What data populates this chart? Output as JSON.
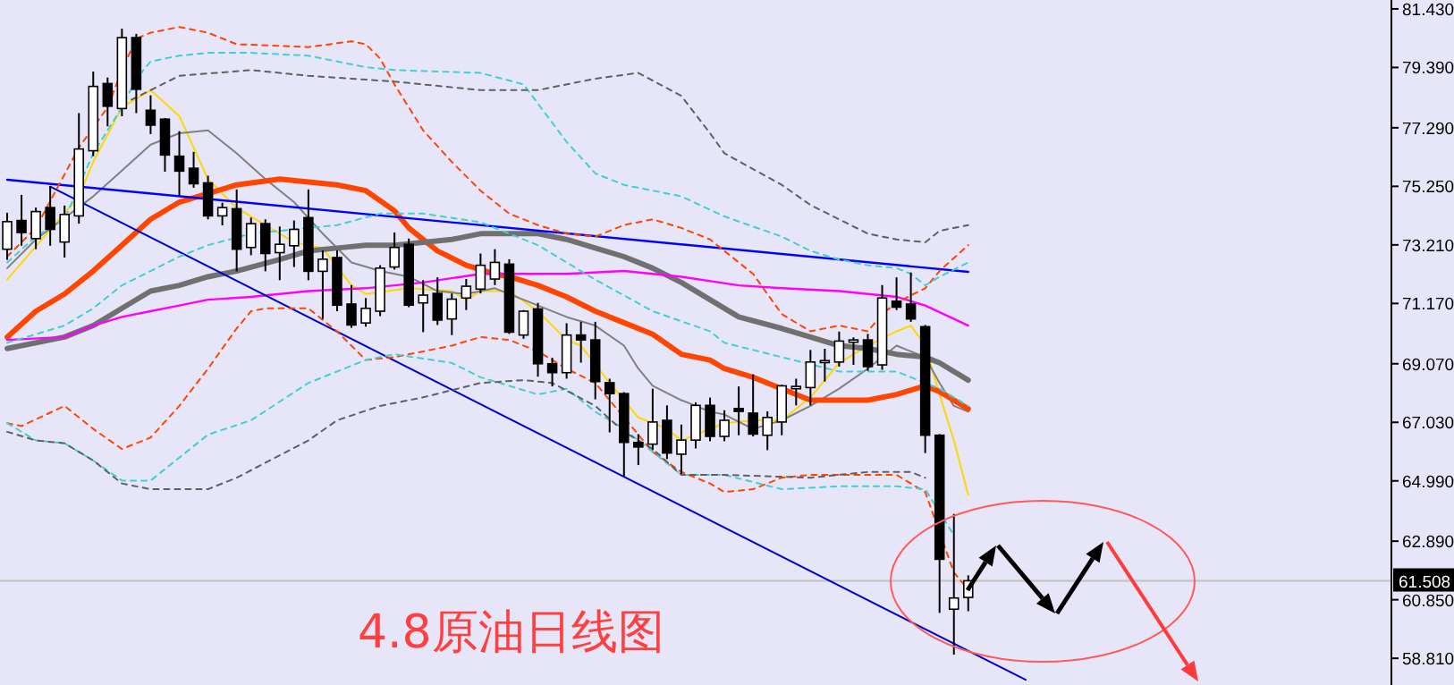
{
  "chart_data": {
    "type": "candlestick",
    "categories": [
      null,
      null,
      null,
      null,
      null,
      null,
      null,
      null,
      null,
      null,
      null,
      null,
      null,
      null,
      null,
      null,
      null,
      null,
      null,
      null,
      null,
      null,
      null,
      null,
      null,
      null,
      null,
      null,
      null,
      null,
      null,
      null,
      null,
      null,
      null,
      null,
      null,
      null,
      null,
      null,
      null,
      null,
      null,
      null,
      null,
      null,
      null,
      null,
      null,
      null,
      null,
      null,
      null,
      null,
      null,
      null,
      null,
      null,
      null,
      null,
      null,
      null,
      null,
      null,
      null,
      null,
      null,
      null,
      null,
      null,
      null,
      null,
      null,
      null,
      null,
      null,
      null,
      null,
      null,
      null,
      null,
      null,
      null,
      null,
      null,
      null,
      null,
      null,
      null,
      null,
      null,
      null,
      null,
      null,
      null,
      null,
      null
    ],
    "ohlc": [
      [
        73.06,
        74.33,
        72.69,
        74.02
      ],
      [
        74.06,
        74.95,
        73.18,
        73.64
      ],
      [
        73.43,
        74.51,
        73.06,
        74.37
      ],
      [
        74.51,
        75.26,
        73.18,
        73.75
      ],
      [
        73.31,
        74.58,
        72.77,
        74.27
      ],
      [
        74.22,
        77.8,
        73.95,
        76.55
      ],
      [
        76.49,
        79.25,
        76.3,
        78.73
      ],
      [
        78.83,
        79.04,
        77.34,
        78.04
      ],
      [
        77.96,
        80.74,
        77.69,
        80.43
      ],
      [
        80.43,
        80.56,
        77.8,
        78.63
      ],
      [
        77.9,
        78.42,
        77.07,
        77.38
      ],
      [
        77.59,
        77.63,
        75.76,
        76.34
      ],
      [
        76.3,
        77.17,
        74.93,
        75.78
      ],
      [
        75.88,
        76.45,
        75.2,
        75.34
      ],
      [
        75.37,
        75.62,
        74.1,
        74.22
      ],
      [
        74.22,
        74.68,
        73.89,
        74.51
      ],
      [
        74.47,
        75.14,
        72.29,
        73.06
      ],
      [
        73.12,
        74.16,
        72.85,
        73.95
      ],
      [
        73.95,
        74.1,
        72.29,
        72.91
      ],
      [
        72.94,
        73.85,
        71.98,
        73.23
      ],
      [
        73.18,
        74.06,
        72.44,
        73.75
      ],
      [
        74.16,
        75.14,
        71.98,
        72.29
      ],
      [
        72.29,
        73.02,
        70.63,
        72.71
      ],
      [
        72.77,
        73.02,
        70.9,
        71.11
      ],
      [
        71.15,
        71.81,
        70.32,
        70.42
      ],
      [
        70.49,
        71.36,
        70.36,
        71.0
      ],
      [
        70.9,
        72.5,
        70.73,
        72.4
      ],
      [
        72.44,
        73.64,
        72.35,
        73.12
      ],
      [
        73.23,
        73.43,
        71.04,
        71.11
      ],
      [
        71.19,
        71.98,
        70.17,
        71.46
      ],
      [
        71.52,
        72.08,
        70.42,
        70.59
      ],
      [
        70.63,
        71.52,
        70.07,
        71.32
      ],
      [
        71.36,
        72.02,
        70.94,
        71.77
      ],
      [
        71.67,
        72.91,
        71.52,
        72.5
      ],
      [
        72.02,
        73.06,
        71.81,
        72.6
      ],
      [
        72.54,
        72.71,
        70.11,
        70.17
      ],
      [
        70.07,
        70.94,
        69.94,
        70.9
      ],
      [
        70.98,
        71.19,
        68.62,
        69.07
      ],
      [
        69.07,
        69.28,
        68.28,
        68.76
      ],
      [
        68.76,
        70.48,
        68.55,
        70.07
      ],
      [
        70.07,
        70.53,
        69.11,
        69.9
      ],
      [
        69.9,
        70.53,
        67.83,
        68.45
      ],
      [
        68.41,
        68.55,
        66.68,
        68.03
      ],
      [
        68.03,
        68.08,
        65.13,
        66.33
      ],
      [
        66.33,
        66.62,
        65.54,
        66.17
      ],
      [
        66.27,
        68.2,
        66.06,
        67.04
      ],
      [
        67.1,
        67.62,
        65.75,
        65.96
      ],
      [
        65.92,
        66.95,
        65.23,
        66.41
      ],
      [
        66.41,
        67.72,
        66.12,
        67.62
      ],
      [
        67.62,
        67.89,
        66.37,
        66.54
      ],
      [
        66.54,
        67.45,
        66.37,
        67.1
      ],
      [
        67.51,
        68.28,
        66.58,
        67.41
      ],
      [
        67.35,
        68.7,
        66.54,
        66.62
      ],
      [
        66.58,
        67.41,
        66.06,
        67.2
      ],
      [
        67.04,
        68.34,
        66.58,
        68.3
      ],
      [
        68.2,
        68.55,
        67.62,
        68.28
      ],
      [
        68.24,
        69.55,
        67.62,
        69.13
      ],
      [
        69.11,
        69.59,
        68.45,
        69.18
      ],
      [
        69.13,
        70.19,
        68.97,
        69.86
      ],
      [
        69.82,
        69.99,
        69.03,
        69.9
      ],
      [
        69.9,
        70.11,
        68.82,
        68.97
      ],
      [
        69.03,
        71.81,
        68.86,
        71.36
      ],
      [
        71.25,
        72.08,
        70.94,
        71.04
      ],
      [
        71.15,
        72.25,
        70.53,
        70.63
      ],
      [
        70.36,
        70.42,
        65.96,
        66.58
      ],
      [
        66.58,
        66.62,
        60.39,
        62.26
      ],
      [
        60.52,
        63.84,
        58.94,
        60.91
      ],
      [
        60.93,
        61.7,
        60.45,
        61.51
      ],
      null,
      null,
      null,
      null,
      null,
      null,
      null,
      null,
      null,
      null,
      null,
      null,
      null,
      null,
      null,
      null,
      null,
      null,
      null,
      null,
      null,
      null,
      null,
      null,
      null,
      null,
      null,
      null,
      null
    ],
    "series": [
      {
        "type": "line",
        "color": "#ffd700",
        "line_style": "solid",
        "values": [
          72.0,
          null,
          null,
          null,
          null,
          74.9,
          76.1,
          null,
          78.0,
          null,
          78.6,
          null,
          77.7,
          null,
          75.5,
          null,
          74.5,
          null,
          null,
          null,
          73.3,
          null,
          73.1,
          null,
          71.8,
          71.5,
          null,
          null,
          71.7,
          null,
          null,
          71.6,
          71.3,
          71.6,
          null,
          71.6,
          null,
          70.9,
          null,
          69.9,
          69.7,
          null,
          68.4,
          null,
          67.2,
          null,
          66.8,
          66.4,
          66.6,
          null,
          67.0,
          null,
          67.1,
          null,
          67.1,
          null,
          67.9,
          null,
          69.1,
          null,
          69.7,
          null,
          70.2,
          70.4,
          69.7,
          68.0,
          66.4,
          64.5,
          null,
          null,
          null,
          null,
          null,
          null,
          null,
          null,
          null,
          null,
          null,
          null,
          null,
          null,
          null,
          null,
          null,
          null,
          null,
          null,
          null,
          null,
          null,
          null,
          null,
          null,
          null,
          null,
          null
        ]
      },
      {
        "type": "line",
        "color": "#808080",
        "line_style": "solid",
        "values": [
          72.4,
          null,
          73.4,
          null,
          null,
          null,
          74.9,
          null,
          75.8,
          null,
          76.7,
          null,
          77.1,
          null,
          77.2,
          null,
          76.4,
          null,
          75.5,
          null,
          74.7,
          null,
          73.6,
          null,
          72.6,
          null,
          72.3,
          null,
          72.1,
          null,
          71.6,
          null,
          71.5,
          null,
          71.7,
          null,
          null,
          71.1,
          null,
          70.7,
          null,
          70.4,
          null,
          69.7,
          68.9,
          68.3,
          null,
          67.8,
          null,
          67.4,
          67.3,
          null,
          66.8,
          null,
          67.1,
          null,
          67.6,
          null,
          68.2,
          null,
          68.9,
          null,
          69.7,
          null,
          69.3,
          68.4,
          67.6,
          67.4,
          null,
          null,
          null,
          null,
          null,
          null,
          null,
          null,
          null,
          null,
          null,
          null,
          null,
          null,
          null,
          null,
          null,
          null,
          null,
          null,
          null,
          null,
          null,
          null,
          null,
          null,
          null,
          null,
          null
        ]
      },
      {
        "type": "line",
        "color": "#ff4500",
        "line_style": "solid",
        "values": [
          70.0,
          null,
          70.9,
          null,
          71.5,
          null,
          72.3,
          null,
          73.2,
          null,
          74.1,
          null,
          74.7,
          null,
          75.0,
          null,
          75.3,
          null,
          null,
          75.5,
          null,
          75.4,
          null,
          75.3,
          null,
          75.1,
          null,
          74.4,
          73.8,
          null,
          73.0,
          null,
          72.5,
          null,
          72.2,
          72.1,
          null,
          71.8,
          null,
          71.4,
          null,
          70.9,
          null,
          70.5,
          null,
          70.1,
          null,
          69.4,
          null,
          69.2,
          68.9,
          null,
          68.6,
          null,
          68.2,
          null,
          67.8,
          null,
          67.8,
          null,
          67.8,
          null,
          68.0,
          null,
          68.3,
          68.1,
          null,
          67.5,
          null,
          null,
          null,
          null,
          null,
          null,
          null,
          null,
          null,
          null,
          null,
          null,
          null,
          null,
          null,
          null,
          null,
          null,
          null,
          null,
          null,
          null,
          null,
          null,
          null,
          null,
          null,
          null,
          null
        ]
      },
      {
        "type": "line",
        "color": "#707070",
        "line_style": "solid",
        "values": [
          69.6,
          null,
          null,
          null,
          70.0,
          null,
          70.4,
          null,
          71.0,
          null,
          71.6,
          null,
          71.8,
          null,
          72.1,
          null,
          72.3,
          null,
          null,
          72.7,
          null,
          73.0,
          null,
          73.1,
          null,
          73.2,
          null,
          73.2,
          null,
          73.3,
          null,
          73.4,
          null,
          73.6,
          null,
          73.6,
          null,
          73.6,
          null,
          73.4,
          null,
          73.1,
          null,
          72.8,
          null,
          72.4,
          null,
          71.9,
          null,
          71.3,
          null,
          70.7,
          null,
          null,
          70.3,
          null,
          70.0,
          null,
          69.7,
          null,
          69.6,
          null,
          69.4,
          null,
          69.3,
          69.1,
          null,
          68.5,
          null,
          null,
          null,
          null,
          null,
          null,
          null,
          null,
          null,
          null,
          null,
          null,
          null,
          null,
          null,
          null,
          null,
          null,
          null,
          null,
          null,
          null,
          null,
          null,
          null,
          null,
          null,
          null,
          null
        ]
      },
      {
        "type": "line",
        "color": "#ff00ff",
        "line_style": "solid",
        "values": [
          69.9,
          null,
          null,
          null,
          70.0,
          null,
          70.4,
          null,
          70.7,
          null,
          70.9,
          null,
          71.1,
          null,
          71.3,
          null,
          null,
          71.4,
          null,
          null,
          null,
          71.6,
          null,
          null,
          null,
          71.7,
          null,
          null,
          null,
          71.9,
          null,
          null,
          null,
          72.2,
          null,
          null,
          null,
          null,
          null,
          72.2,
          null,
          null,
          null,
          72.3,
          null,
          null,
          null,
          72.1,
          null,
          null,
          null,
          71.8,
          null,
          null,
          71.7,
          null,
          null,
          null,
          71.6,
          null,
          null,
          null,
          71.4,
          null,
          71.1,
          null,
          null,
          70.4,
          null,
          null,
          null,
          null,
          null,
          null,
          null,
          null,
          null,
          null,
          null,
          null,
          null,
          null,
          null,
          null,
          null,
          null,
          null,
          null,
          null,
          null,
          null,
          null,
          null,
          null,
          null,
          null,
          null
        ]
      },
      {
        "type": "line",
        "color": "#0000ff",
        "line_style": "solid",
        "values": [
          75.48,
          null,
          null,
          null,
          null,
          null,
          null,
          null,
          null,
          null,
          null,
          null,
          null,
          null,
          null,
          null,
          null,
          null,
          null,
          null,
          null,
          null,
          null,
          null,
          null,
          null,
          null,
          null,
          null,
          null,
          null,
          null,
          null,
          null,
          null,
          null,
          null,
          null,
          null,
          null,
          null,
          null,
          null,
          null,
          null,
          null,
          null,
          null,
          null,
          null,
          null,
          null,
          null,
          null,
          null,
          null,
          null,
          null,
          null,
          null,
          null,
          null,
          null,
          null,
          null,
          null,
          null,
          72.27,
          null,
          null,
          null,
          null,
          null,
          null,
          null,
          null,
          null,
          null,
          null,
          null,
          null,
          null,
          null,
          null,
          null,
          null,
          null,
          null,
          null,
          null,
          null,
          null,
          null,
          null,
          null,
          null,
          null
        ]
      },
      {
        "type": "line",
        "color": "#0000cd",
        "line_style": "solid",
        "values": [
          null,
          null,
          null,
          75.24,
          null,
          null,
          null,
          null,
          null,
          null,
          null,
          null,
          null,
          null,
          null,
          null,
          null,
          null,
          null,
          null,
          null,
          null,
          null,
          null,
          null,
          null,
          null,
          null,
          null,
          null,
          null,
          null,
          null,
          null,
          null,
          null,
          null,
          null,
          null,
          null,
          null,
          null,
          null,
          null,
          null,
          null,
          null,
          null,
          null,
          null,
          null,
          null,
          null,
          null,
          null,
          null,
          null,
          null,
          null,
          null,
          null,
          null,
          null,
          null,
          null,
          null,
          null,
          null,
          null,
          null,
          null,
          58.06,
          null,
          null,
          null,
          null,
          null,
          null,
          null,
          null,
          null,
          null,
          null,
          null,
          null,
          null,
          null,
          null,
          null,
          null,
          null,
          null,
          null,
          null,
          null,
          null,
          null
        ]
      },
      {
        "type": "line",
        "color": "#ff4500",
        "line_style": "dashed",
        "values": [
          72.8,
          null,
          73.8,
          null,
          null,
          76.6,
          null,
          78.0,
          79.3,
          80.4,
          80.6,
          null,
          80.8,
          null,
          80.6,
          null,
          80.2,
          null,
          null,
          null,
          null,
          80.1,
          null,
          null,
          80.3,
          80.2,
          79.7,
          78.8,
          null,
          77.2,
          null,
          76.1,
          null,
          75.1,
          null,
          74.3,
          null,
          73.9,
          null,
          73.6,
          null,
          73.5,
          null,
          73.9,
          null,
          74.1,
          null,
          73.8,
          null,
          73.4,
          null,
          null,
          72.2,
          null,
          70.8,
          null,
          70.2,
          null,
          70.4,
          null,
          70.2,
          70.8,
          71.2,
          null,
          71.7,
          72.3,
          null,
          73.2,
          null,
          null,
          null,
          null,
          null,
          null,
          null,
          null,
          null,
          null,
          null,
          null,
          null,
          null,
          null,
          null,
          null,
          null,
          null,
          null,
          null,
          null,
          null,
          null,
          null,
          null,
          null,
          null,
          null
        ]
      },
      {
        "type": "line",
        "color": "#ff4500",
        "line_style": "dashed",
        "values": [
          67.0,
          66.9,
          null,
          null,
          67.6,
          null,
          66.8,
          null,
          66.1,
          null,
          66.5,
          null,
          67.6,
          null,
          68.9,
          null,
          70.3,
          70.9,
          71.0,
          null,
          null,
          71.0,
          null,
          70.2,
          null,
          69.2,
          null,
          69.3,
          null,
          69.5,
          null,
          69.7,
          null,
          70.0,
          null,
          69.9,
          null,
          69.5,
          null,
          68.9,
          null,
          68.4,
          null,
          67.2,
          null,
          66.0,
          null,
          65.3,
          null,
          64.9,
          64.6,
          null,
          64.7,
          null,
          65.1,
          null,
          65.2,
          null,
          null,
          null,
          65.2,
          null,
          65.2,
          null,
          64.6,
          null,
          61.8,
          61.2,
          null,
          null,
          null,
          null,
          null,
          null,
          null,
          null,
          null,
          null,
          null,
          null,
          null,
          null,
          null,
          null,
          null,
          null,
          null,
          null,
          null,
          null,
          null,
          null,
          null,
          null,
          null,
          null,
          null
        ]
      },
      {
        "type": "line",
        "color": "#40d0d0",
        "line_style": "dashed",
        "values": [
          72.6,
          null,
          73.5,
          null,
          74.1,
          null,
          76.4,
          null,
          78.0,
          79.0,
          79.6,
          null,
          79.8,
          null,
          79.9,
          null,
          null,
          79.9,
          null,
          null,
          null,
          79.8,
          null,
          null,
          null,
          79.4,
          null,
          79.3,
          null,
          null,
          null,
          null,
          null,
          79.2,
          null,
          null,
          78.8,
          null,
          null,
          76.8,
          null,
          75.7,
          null,
          75.3,
          null,
          null,
          null,
          74.9,
          null,
          null,
          74.2,
          null,
          null,
          null,
          73.5,
          null,
          73.0,
          null,
          72.7,
          null,
          72.5,
          null,
          72.4,
          72.2,
          71.8,
          72.1,
          null,
          72.6,
          null,
          null,
          null,
          null,
          null,
          null,
          null,
          null,
          null,
          null,
          null,
          null,
          null,
          null,
          null,
          null,
          null,
          null,
          null,
          null,
          null,
          null,
          null,
          null,
          null,
          null,
          null,
          null,
          null
        ]
      },
      {
        "type": "line",
        "color": "#40d0d0",
        "line_style": "dashed",
        "values": [
          69.8,
          null,
          null,
          null,
          70.4,
          null,
          71.0,
          null,
          71.8,
          null,
          72.3,
          null,
          72.8,
          null,
          73.2,
          null,
          null,
          73.6,
          null,
          null,
          null,
          null,
          null,
          73.9,
          null,
          null,
          74.3,
          null,
          null,
          74.3,
          null,
          null,
          null,
          74.0,
          null,
          null,
          null,
          73.2,
          null,
          null,
          null,
          72.0,
          null,
          null,
          null,
          70.9,
          null,
          null,
          null,
          70.2,
          69.8,
          null,
          null,
          null,
          69.3,
          null,
          null,
          null,
          68.8,
          null,
          null,
          null,
          68.8,
          null,
          68.4,
          68.2,
          null,
          67.6,
          null,
          null,
          null,
          null,
          null,
          null,
          null,
          null,
          null,
          null,
          null,
          null,
          null,
          null,
          null,
          null,
          null,
          null,
          null,
          null,
          null,
          null,
          null,
          null,
          null,
          null,
          null,
          null,
          null
        ]
      },
      {
        "type": "line",
        "color": "#40d0d0",
        "line_style": "dashed",
        "values": [
          67.0,
          null,
          66.4,
          null,
          66.3,
          null,
          65.7,
          null,
          65.0,
          null,
          65.0,
          null,
          65.8,
          null,
          66.6,
          null,
          null,
          67.1,
          null,
          null,
          null,
          68.4,
          null,
          null,
          null,
          69.2,
          null,
          69.4,
          null,
          null,
          null,
          69.1,
          null,
          68.6,
          null,
          null,
          null,
          68.0,
          null,
          68.2,
          null,
          67.4,
          null,
          66.8,
          null,
          66.0,
          null,
          65.2,
          null,
          null,
          65.2,
          null,
          null,
          null,
          64.7,
          null,
          null,
          null,
          64.8,
          null,
          null,
          null,
          64.8,
          null,
          64.7,
          null,
          63.1,
          null,
          null,
          null,
          null,
          null,
          null,
          null,
          null,
          null,
          null,
          null,
          null,
          null,
          null,
          null,
          null,
          null,
          null,
          null,
          null,
          null,
          null,
          null,
          null,
          null,
          null,
          null,
          null,
          null,
          null
        ]
      },
      {
        "type": "line",
        "color": "#606060",
        "line_style": "dashed",
        "values": [
          null,
          null,
          null,
          null,
          null,
          null,
          null,
          null,
          78.1,
          null,
          78.6,
          null,
          79.1,
          null,
          null,
          null,
          null,
          79.3,
          null,
          null,
          null,
          79.1,
          null,
          null,
          null,
          null,
          null,
          78.9,
          null,
          null,
          null,
          null,
          null,
          78.6,
          null,
          null,
          null,
          78.6,
          null,
          null,
          null,
          79.0,
          null,
          null,
          79.2,
          null,
          null,
          78.4,
          null,
          77.1,
          76.4,
          null,
          null,
          null,
          75.3,
          null,
          74.6,
          null,
          74.1,
          null,
          73.6,
          null,
          73.4,
          null,
          73.3,
          73.7,
          null,
          73.9,
          null,
          null,
          null,
          null,
          null,
          null,
          null,
          null,
          null,
          null,
          null,
          null,
          null,
          null,
          null,
          null,
          null,
          null,
          null,
          null,
          null,
          null,
          null,
          null,
          null,
          null,
          null,
          null,
          null
        ]
      },
      {
        "type": "line",
        "color": "#606060",
        "line_style": "dashed",
        "values": [
          66.7,
          null,
          66.4,
          null,
          66.3,
          null,
          65.7,
          null,
          64.9,
          null,
          64.7,
          null,
          null,
          null,
          64.7,
          null,
          65.1,
          null,
          null,
          null,
          null,
          66.4,
          null,
          67.1,
          null,
          null,
          67.6,
          null,
          null,
          67.9,
          null,
          null,
          null,
          68.4,
          null,
          null,
          68.5,
          null,
          68.4,
          null,
          null,
          67.6,
          null,
          66.7,
          null,
          66.1,
          null,
          65.2,
          null,
          null,
          65.2,
          null,
          null,
          null,
          null,
          null,
          65.1,
          null,
          null,
          null,
          65.3,
          null,
          null,
          65.3,
          65.1,
          null,
          null,
          null,
          null,
          null,
          null,
          null,
          null,
          null,
          null,
          null,
          null,
          null,
          null,
          null,
          null,
          null,
          null,
          null,
          null,
          null,
          null,
          null,
          null,
          null,
          null,
          null,
          null,
          null,
          null,
          null,
          null
        ]
      }
    ],
    "ylim": [
      57.88,
      81.74
    ],
    "yticks": [
      {
        "value": 81.43,
        "label": "81.430"
      },
      {
        "value": 79.39,
        "label": "79.390"
      },
      {
        "value": 77.29,
        "label": "77.290"
      },
      {
        "value": 75.25,
        "label": "75.250"
      },
      {
        "value": 73.21,
        "label": "73.210"
      },
      {
        "value": 71.17,
        "label": "71.170"
      },
      {
        "value": 69.07,
        "label": "69.070"
      },
      {
        "value": 67.03,
        "label": "67.030"
      },
      {
        "value": 64.99,
        "label": "64.990"
      },
      {
        "value": 62.89,
        "label": "62.890"
      },
      {
        "value": 60.85,
        "label": "60.850"
      },
      {
        "value": 58.81,
        "label": "58.810"
      }
    ],
    "tick_labels": "y",
    "ref_lines": [
      {
        "axis": "y",
        "value": 61.508,
        "label": "61.508",
        "color": "#c0c0c0"
      }
    ],
    "annotations": [
      "4.8原油日线图"
    ]
  }
}
